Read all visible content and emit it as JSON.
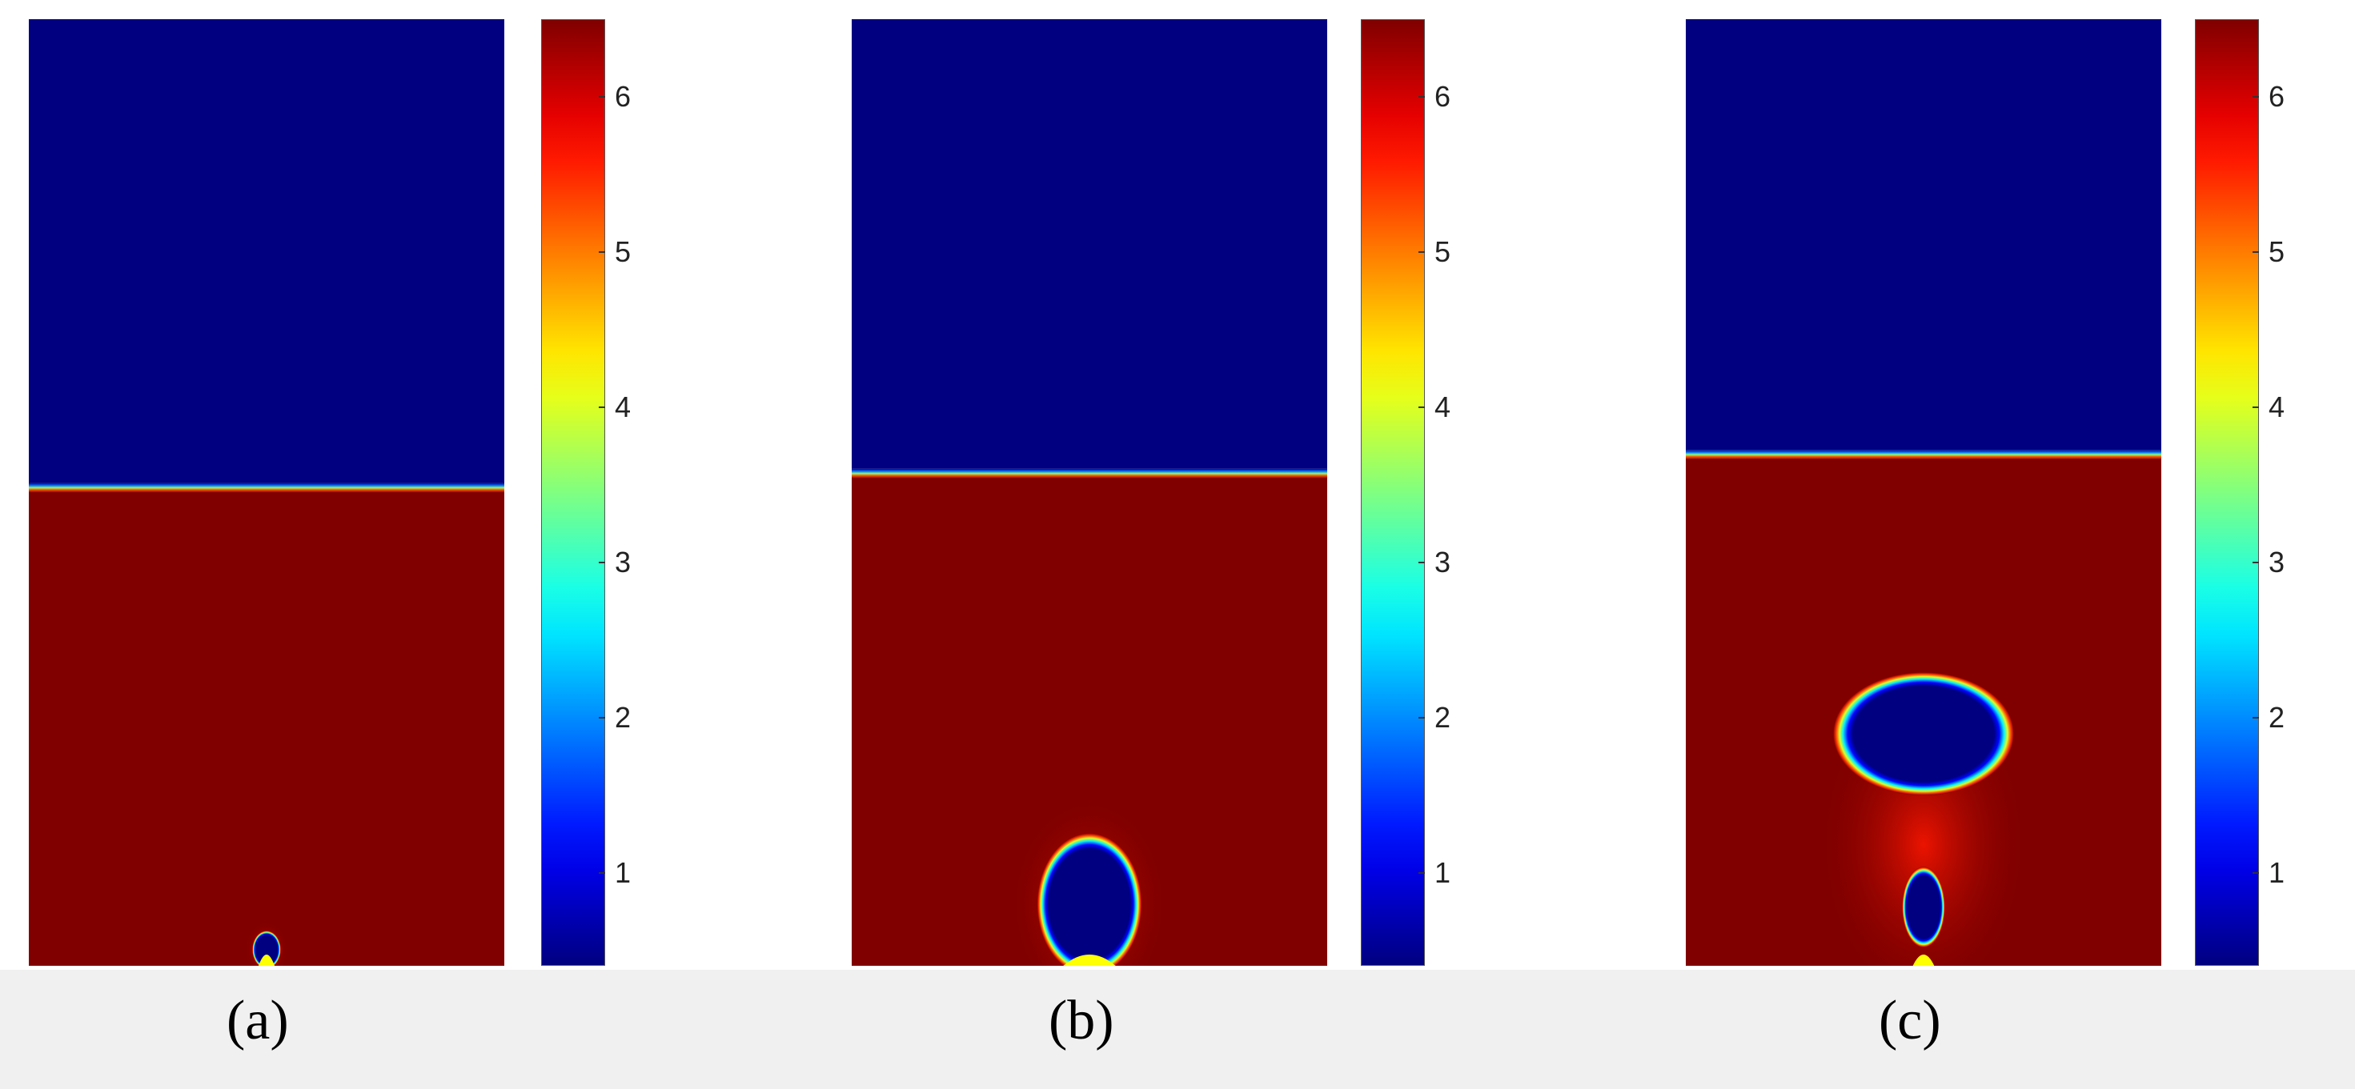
{
  "chart_data": [
    {
      "type": "heatmap",
      "panel_label": "(a)",
      "colormap": "jet",
      "colorbar": {
        "ticks": [
          1,
          2,
          3,
          4,
          5,
          6
        ],
        "range": [
          0.4,
          6.5
        ]
      },
      "upper_region_value": 0.4,
      "lower_region_value": 6.5,
      "interface_height_fraction": 0.505,
      "bubbles": [
        {
          "center_x_fraction": 0.5,
          "center_y_fraction": 0.017,
          "width_fraction": 0.06,
          "height_fraction": 0.04
        }
      ]
    },
    {
      "type": "heatmap",
      "panel_label": "(b)",
      "colormap": "jet",
      "colorbar": {
        "ticks": [
          1,
          2,
          3,
          4,
          5,
          6
        ],
        "range": [
          0.4,
          6.5
        ]
      },
      "upper_region_value": 0.4,
      "lower_region_value": 6.5,
      "interface_height_fraction": 0.52,
      "bubbles": [
        {
          "center_x_fraction": 0.5,
          "center_y_fraction": 0.065,
          "width_fraction": 0.22,
          "height_fraction": 0.15
        }
      ]
    },
    {
      "type": "heatmap",
      "panel_label": "(c)",
      "colormap": "jet",
      "colorbar": {
        "ticks": [
          1,
          2,
          3,
          4,
          5,
          6
        ],
        "range": [
          0.4,
          6.5
        ]
      },
      "upper_region_value": 0.4,
      "lower_region_value": 6.5,
      "interface_height_fraction": 0.54,
      "bubbles": [
        {
          "center_x_fraction": 0.5,
          "center_y_fraction": 0.245,
          "width_fraction": 0.38,
          "height_fraction": 0.13
        },
        {
          "center_x_fraction": 0.5,
          "center_y_fraction": 0.062,
          "width_fraction": 0.09,
          "height_fraction": 0.085
        }
      ]
    }
  ],
  "colors": {
    "low": "#00008f",
    "high": "#7f0000",
    "caption_band": "#f0f0f0"
  }
}
